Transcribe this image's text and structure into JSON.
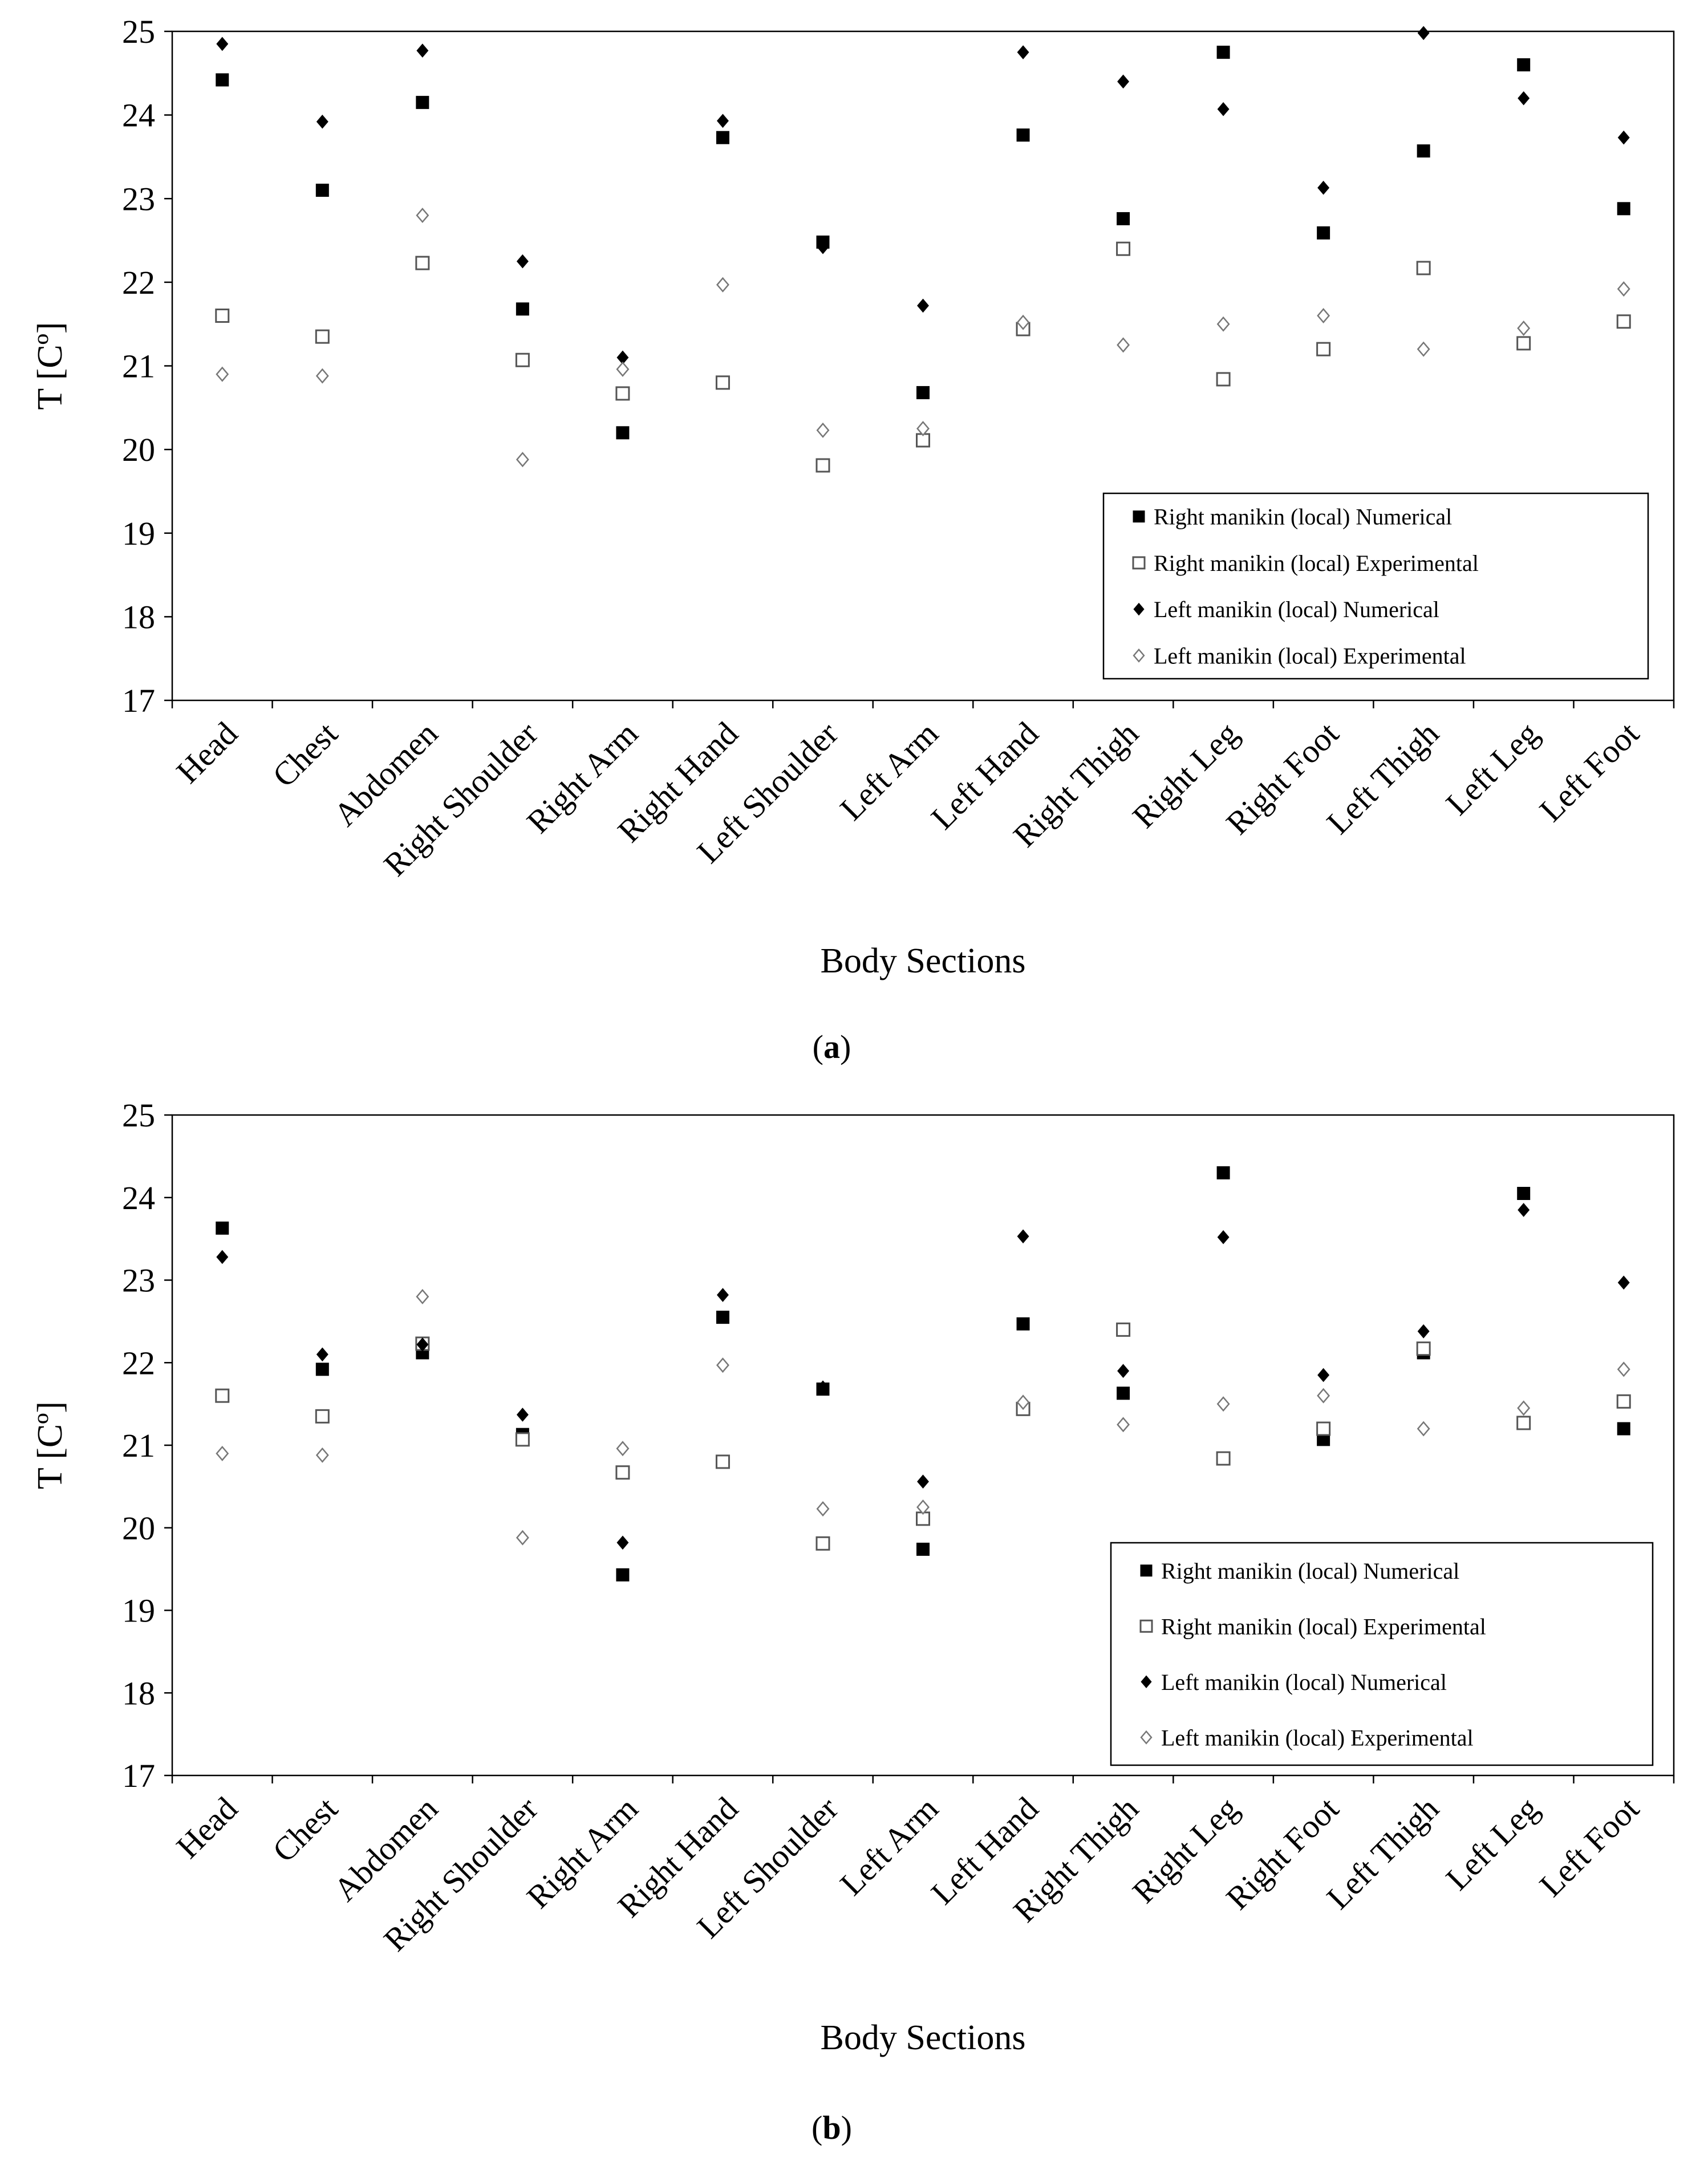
{
  "chart_data": [
    {
      "panel": "a",
      "panel_label_open": "(",
      "panel_label_letter": "a",
      "panel_label_close": ")",
      "type": "scatter",
      "title": "",
      "xlabel": "Body Sections",
      "ylabel": "T [Cº]",
      "ylim": [
        17,
        25
      ],
      "yticks": [
        "17",
        "18",
        "19",
        "20",
        "21",
        "22",
        "23",
        "24",
        "25"
      ],
      "grid": false,
      "legend_position": "bottom-right",
      "categories": [
        "Head",
        "Chest",
        "Abdomen",
        "Right Shoulder",
        "Right Arm",
        "Right Hand",
        "Left Shoulder",
        "Left Arm",
        "Left Hand",
        "Right Thigh",
        "Right Leg",
        "Right Foot",
        "Left Thigh",
        "Left Leg",
        "Left Foot"
      ],
      "series": [
        {
          "name": "Right manikin  (local) Numerical",
          "marker": "square-filled",
          "values": [
            24.42,
            23.1,
            24.15,
            21.68,
            20.2,
            23.73,
            22.48,
            20.68,
            23.76,
            22.76,
            24.75,
            22.59,
            23.57,
            24.6,
            22.88
          ]
        },
        {
          "name": "Right manikin  (local) Experimental",
          "marker": "square-open",
          "values": [
            21.6,
            21.35,
            22.23,
            21.07,
            20.67,
            20.8,
            19.81,
            20.11,
            21.44,
            22.4,
            20.84,
            21.2,
            22.17,
            21.27,
            21.53
          ]
        },
        {
          "name": "Left manikin  (local) Numerical",
          "marker": "diamond-filled",
          "values": [
            24.85,
            23.92,
            24.77,
            22.25,
            21.1,
            23.93,
            22.42,
            21.72,
            24.75,
            24.4,
            24.07,
            23.13,
            24.98,
            24.2,
            23.73
          ]
        },
        {
          "name": "Left manikin  (local) Experimental",
          "marker": "diamond-open",
          "values": [
            20.9,
            20.88,
            22.8,
            19.88,
            20.96,
            21.97,
            20.23,
            20.25,
            21.52,
            21.25,
            21.5,
            21.6,
            21.2,
            21.45,
            21.92
          ]
        }
      ]
    },
    {
      "panel": "b",
      "panel_label_open": "(",
      "panel_label_letter": "b",
      "panel_label_close": ")",
      "type": "scatter",
      "title": "",
      "xlabel": "Body Sections",
      "ylabel": "T [Cº]",
      "ylim": [
        17,
        25
      ],
      "yticks": [
        "17",
        "18",
        "19",
        "20",
        "21",
        "22",
        "23",
        "24",
        "25"
      ],
      "grid": false,
      "legend_position": "bottom-right",
      "categories": [
        "Head",
        "Chest",
        "Abdomen",
        "Right Shoulder",
        "Right Arm",
        "Right Hand",
        "Left Shoulder",
        "Left Arm",
        "Left Hand",
        "Right Thigh",
        "Right Leg",
        "Right Foot",
        "Left Thigh",
        "Left Leg",
        "Left Foot"
      ],
      "series": [
        {
          "name": "Right manikin  (local) Numerical",
          "marker": "square-filled",
          "values": [
            23.63,
            21.92,
            22.12,
            21.13,
            19.43,
            22.55,
            21.68,
            19.74,
            22.47,
            21.63,
            24.3,
            21.07,
            22.12,
            24.05,
            21.2
          ]
        },
        {
          "name": "Right manikin  (local) Experimental",
          "marker": "square-open",
          "values": [
            21.6,
            21.35,
            22.23,
            21.07,
            20.67,
            20.8,
            19.81,
            20.11,
            21.44,
            22.4,
            20.84,
            21.2,
            22.17,
            21.27,
            21.53
          ]
        },
        {
          "name": "Left manikin  (local) Numerical",
          "marker": "diamond-filled",
          "values": [
            23.28,
            22.1,
            22.22,
            21.37,
            19.82,
            22.82,
            21.7,
            20.56,
            23.53,
            21.9,
            23.52,
            21.85,
            22.38,
            23.85,
            22.97
          ]
        },
        {
          "name": "Left manikin  (local) Experimental",
          "marker": "diamond-open",
          "values": [
            20.9,
            20.88,
            22.8,
            19.88,
            20.96,
            21.97,
            20.23,
            20.25,
            21.52,
            21.25,
            21.5,
            21.6,
            21.2,
            21.45,
            21.92
          ]
        }
      ]
    }
  ]
}
